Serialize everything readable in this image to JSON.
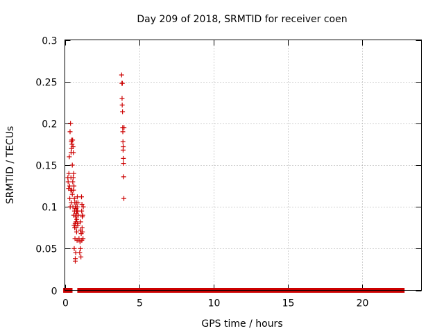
{
  "chart_data": {
    "type": "scatter",
    "title": "Day 209 of 2018, SRMTID for receiver coen",
    "xlabel": "GPS time / hours",
    "ylabel": "SRMTID / TECUs",
    "xlim": [
      0,
      24
    ],
    "ylim": [
      0,
      0.3
    ],
    "xticks": [
      0,
      5,
      10,
      15,
      20
    ],
    "yticks": [
      0,
      0.05,
      0.1,
      0.15,
      0.2,
      0.25,
      0.3
    ],
    "xtick_labels": [
      "0",
      "5",
      "10",
      "15",
      "20"
    ],
    "ytick_labels": [
      "0",
      "0.05",
      "0.1",
      "0.15",
      "0.2",
      "0.25",
      "0.3"
    ],
    "grid": true,
    "marker": "+",
    "marker_color": "#cc0000",
    "zero_segments": [
      [
        0.05,
        0.35
      ],
      [
        1.0,
        1.1
      ],
      [
        1.35,
        3.8
      ],
      [
        3.95,
        22.7
      ]
    ],
    "series": [
      {
        "name": "SRMTID",
        "points": [
          [
            0.2,
            0.135
          ],
          [
            0.22,
            0.13
          ],
          [
            0.25,
            0.122
          ],
          [
            0.27,
            0.14
          ],
          [
            0.3,
            0.16
          ],
          [
            0.32,
            0.125
          ],
          [
            0.33,
            0.11
          ],
          [
            0.35,
            0.19
          ],
          [
            0.36,
            0.1
          ],
          [
            0.38,
            0.2
          ],
          [
            0.4,
            0.12
          ],
          [
            0.41,
            0.135
          ],
          [
            0.42,
            0.165
          ],
          [
            0.43,
            0.105
          ],
          [
            0.44,
            0.178
          ],
          [
            0.45,
            0.17
          ],
          [
            0.46,
            0.18
          ],
          [
            0.47,
            0.12
          ],
          [
            0.48,
            0.175
          ],
          [
            0.5,
            0.15
          ],
          [
            0.5,
            0.115
          ],
          [
            0.52,
            0.18
          ],
          [
            0.53,
            0.13
          ],
          [
            0.54,
            0.1
          ],
          [
            0.55,
            0.172
          ],
          [
            0.56,
            0.135
          ],
          [
            0.57,
            0.165
          ],
          [
            0.58,
            0.12
          ],
          [
            0.6,
            0.14
          ],
          [
            0.6,
            0.09
          ],
          [
            0.61,
            0.125
          ],
          [
            0.62,
            0.078
          ],
          [
            0.63,
            0.05
          ],
          [
            0.64,
            0.11
          ],
          [
            0.65,
            0.095
          ],
          [
            0.66,
            0.075
          ],
          [
            0.67,
            0.105
          ],
          [
            0.68,
            0.062
          ],
          [
            0.69,
            0.08
          ],
          [
            0.7,
            0.038
          ],
          [
            0.7,
            0.035
          ],
          [
            0.71,
            0.1
          ],
          [
            0.72,
            0.088
          ],
          [
            0.73,
            0.045
          ],
          [
            0.74,
            0.082
          ],
          [
            0.75,
            0.098
          ],
          [
            0.76,
            0.075
          ],
          [
            0.77,
            0.092
          ],
          [
            0.78,
            0.105
          ],
          [
            0.79,
            0.07
          ],
          [
            0.8,
            0.085
          ],
          [
            0.81,
            0.095
          ],
          [
            0.82,
            0.06
          ],
          [
            0.83,
            0.1
          ],
          [
            0.84,
            0.112
          ],
          [
            0.85,
            0.08
          ],
          [
            0.86,
            0.095
          ],
          [
            0.87,
            0.078
          ],
          [
            0.88,
            0.105
          ],
          [
            0.9,
            0.09
          ],
          [
            0.95,
            0.062
          ],
          [
            1.0,
            0.045
          ],
          [
            1.02,
            0.058
          ],
          [
            1.04,
            0.072
          ],
          [
            1.05,
            0.05
          ],
          [
            1.06,
            0.082
          ],
          [
            1.08,
            0.04
          ],
          [
            1.1,
            0.068
          ],
          [
            1.12,
            0.112
          ],
          [
            1.13,
            0.095
          ],
          [
            1.14,
            0.06
          ],
          [
            1.15,
            0.103
          ],
          [
            1.16,
            0.075
          ],
          [
            1.17,
            0.088
          ],
          [
            1.18,
            0.07
          ],
          [
            1.2,
            0.09
          ],
          [
            1.22,
            0.062
          ],
          [
            1.24,
            0.1
          ],
          [
            3.82,
            0.258
          ],
          [
            3.84,
            0.248
          ],
          [
            3.85,
            0.23
          ],
          [
            3.86,
            0.222
          ],
          [
            3.87,
            0.248
          ],
          [
            3.88,
            0.214
          ],
          [
            3.89,
            0.195
          ],
          [
            3.9,
            0.19
          ],
          [
            3.91,
            0.178
          ],
          [
            3.92,
            0.168
          ],
          [
            3.93,
            0.172
          ],
          [
            3.94,
            0.158
          ],
          [
            3.95,
            0.152
          ],
          [
            3.96,
            0.136
          ],
          [
            3.97,
            0.11
          ],
          [
            3.98,
            0.195
          ]
        ]
      }
    ]
  }
}
